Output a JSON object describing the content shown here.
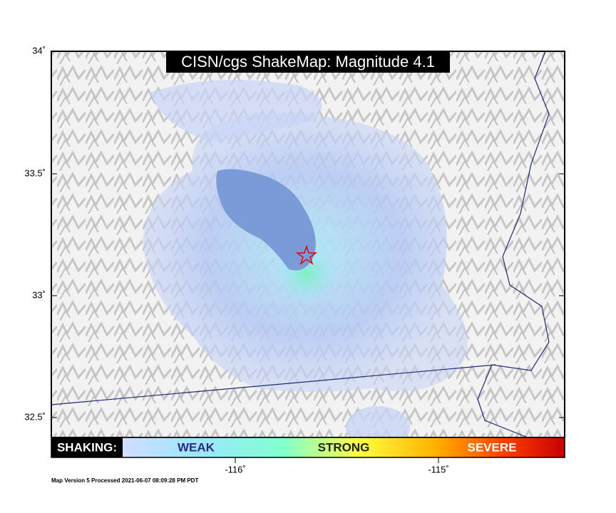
{
  "map": {
    "title": "CISN/cgs ShakeMap: Magnitude 4.1",
    "lat_ticks": [
      "34˚",
      "33.5˚",
      "33˚",
      "32.5˚"
    ],
    "lon_ticks": [
      "-116˚",
      "-115˚"
    ],
    "legend": {
      "label": "SHAKING:",
      "levels": [
        "WEAK",
        "STRONG",
        "SEVERE"
      ]
    },
    "footer": "Map Version 5 Processed 2021-06-07 08:09:28 PM PDT"
  }
}
